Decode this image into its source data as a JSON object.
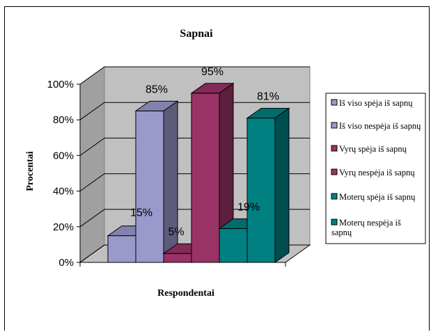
{
  "chart_data": {
    "type": "bar",
    "title": "Sapnai",
    "xlabel": "Respondentai",
    "ylabel": "Procentai",
    "ylim": [
      0,
      100
    ],
    "yticks": [
      "0%",
      "20%",
      "40%",
      "60%",
      "80%",
      "100%"
    ],
    "legend_position": "right",
    "grid": true,
    "series": [
      {
        "name": "Iš viso spėja iš sapnų",
        "value": 15,
        "label": "15%",
        "color": "#9999cc"
      },
      {
        "name": "Iš viso nespėja iš sapnų",
        "value": 85,
        "label": "85%",
        "color": "#9999cc"
      },
      {
        "name": "Vyrų spėja iš sapnų",
        "value": 5,
        "label": "5%",
        "color": "#993366"
      },
      {
        "name": "Vyrų nespėja iš sapnų",
        "value": 95,
        "label": "95%",
        "color": "#993366"
      },
      {
        "name": "Moterų spėja iš sapnų",
        "value": 19,
        "label": "19%",
        "color": "#008080"
      },
      {
        "name": "Moterų nespėja iš sapnų",
        "value": 81,
        "label": "81%",
        "color": "#008080"
      }
    ]
  }
}
